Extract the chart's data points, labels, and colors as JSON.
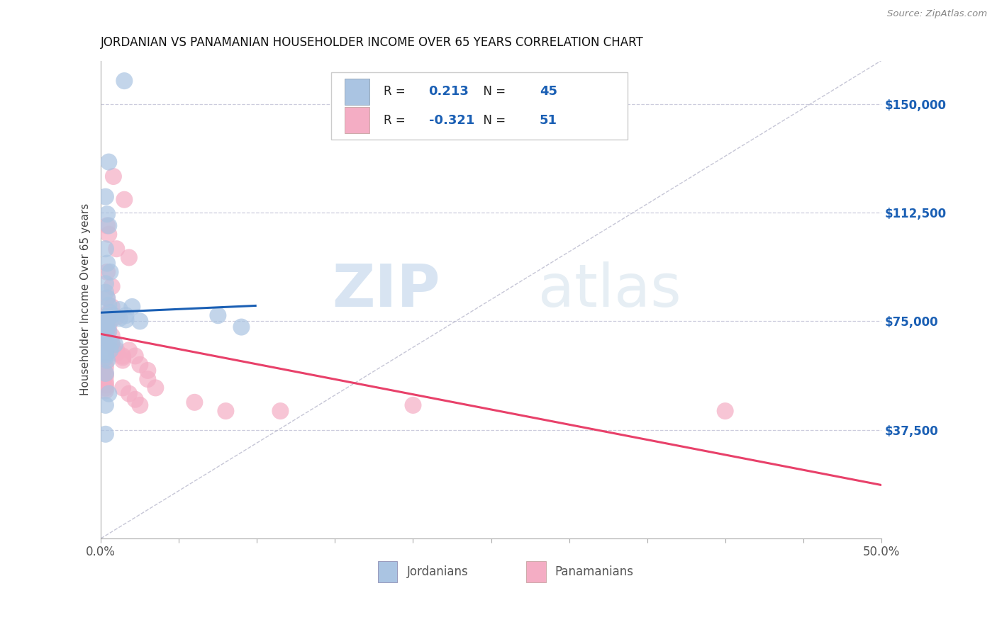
{
  "title": "JORDANIAN VS PANAMANIAN HOUSEHOLDER INCOME OVER 65 YEARS CORRELATION CHART",
  "source": "Source: ZipAtlas.com",
  "ylabel": "Householder Income Over 65 years",
  "ytick_labels": [
    "$37,500",
    "$75,000",
    "$112,500",
    "$150,000"
  ],
  "ytick_values": [
    37500,
    75000,
    112500,
    150000
  ],
  "xlim": [
    0.0,
    0.5
  ],
  "ylim": [
    0,
    165000
  ],
  "R_jordan": "0.213",
  "N_jordan": "45",
  "R_panama": "-0.321",
  "N_panama": "51",
  "jordan_color": "#aac4e2",
  "panama_color": "#f4adc4",
  "jordan_line_color": "#1a5fb4",
  "panama_line_color": "#e8416a",
  "jordan_scatter": [
    [
      0.005,
      130000
    ],
    [
      0.015,
      158000
    ],
    [
      0.003,
      118000
    ],
    [
      0.004,
      112000
    ],
    [
      0.005,
      108000
    ],
    [
      0.003,
      100000
    ],
    [
      0.004,
      95000
    ],
    [
      0.006,
      92000
    ],
    [
      0.003,
      88000
    ],
    [
      0.003,
      85000
    ],
    [
      0.004,
      83000
    ],
    [
      0.005,
      80500
    ],
    [
      0.006,
      78000
    ],
    [
      0.007,
      77000
    ],
    [
      0.003,
      76500
    ],
    [
      0.004,
      75500
    ],
    [
      0.006,
      75000
    ],
    [
      0.003,
      74500
    ],
    [
      0.003,
      73500
    ],
    [
      0.004,
      72500
    ],
    [
      0.005,
      71500
    ],
    [
      0.003,
      70500
    ],
    [
      0.003,
      70000
    ],
    [
      0.003,
      69000
    ],
    [
      0.005,
      68000
    ],
    [
      0.007,
      67500
    ],
    [
      0.009,
      67000
    ],
    [
      0.003,
      66000
    ],
    [
      0.006,
      65000
    ],
    [
      0.003,
      64000
    ],
    [
      0.003,
      63500
    ],
    [
      0.003,
      62500
    ],
    [
      0.004,
      61500
    ],
    [
      0.012,
      79000
    ],
    [
      0.016,
      77000
    ],
    [
      0.012,
      76000
    ],
    [
      0.016,
      75500
    ],
    [
      0.02,
      80000
    ],
    [
      0.025,
      75000
    ],
    [
      0.003,
      46000
    ],
    [
      0.005,
      50000
    ],
    [
      0.003,
      36000
    ],
    [
      0.075,
      77000
    ],
    [
      0.09,
      73000
    ],
    [
      0.003,
      57000
    ]
  ],
  "panama_scatter": [
    [
      0.008,
      125000
    ],
    [
      0.015,
      117000
    ],
    [
      0.004,
      108000
    ],
    [
      0.005,
      105000
    ],
    [
      0.01,
      100000
    ],
    [
      0.018,
      97000
    ],
    [
      0.004,
      92000
    ],
    [
      0.007,
      87000
    ],
    [
      0.004,
      83000
    ],
    [
      0.007,
      80000
    ],
    [
      0.005,
      78000
    ],
    [
      0.01,
      76500
    ],
    [
      0.004,
      75500
    ],
    [
      0.004,
      75000
    ],
    [
      0.004,
      74000
    ],
    [
      0.005,
      73000
    ],
    [
      0.004,
      72000
    ],
    [
      0.004,
      71000
    ],
    [
      0.007,
      70000
    ],
    [
      0.004,
      69000
    ],
    [
      0.004,
      68000
    ],
    [
      0.007,
      67000
    ],
    [
      0.007,
      66000
    ],
    [
      0.01,
      65000
    ],
    [
      0.01,
      64000
    ],
    [
      0.014,
      63000
    ],
    [
      0.014,
      62500
    ],
    [
      0.014,
      61500
    ],
    [
      0.003,
      60500
    ],
    [
      0.003,
      59000
    ],
    [
      0.003,
      57000
    ],
    [
      0.003,
      56000
    ],
    [
      0.003,
      54000
    ],
    [
      0.003,
      53000
    ],
    [
      0.003,
      52000
    ],
    [
      0.003,
      51000
    ],
    [
      0.018,
      65000
    ],
    [
      0.022,
      63000
    ],
    [
      0.025,
      60000
    ],
    [
      0.03,
      58000
    ],
    [
      0.014,
      52000
    ],
    [
      0.018,
      50000
    ],
    [
      0.022,
      48000
    ],
    [
      0.025,
      46000
    ],
    [
      0.03,
      55000
    ],
    [
      0.035,
      52000
    ],
    [
      0.06,
      47000
    ],
    [
      0.08,
      44000
    ],
    [
      0.115,
      44000
    ],
    [
      0.2,
      46000
    ],
    [
      0.4,
      44000
    ]
  ],
  "watermark_zip": "ZIP",
  "watermark_atlas": "atlas",
  "background_color": "#ffffff",
  "grid_color": "#ccccdd",
  "dashed_line_color": "#b8b8cc",
  "legend_text_color": "#1a5fb4",
  "label_text_color": "#555555"
}
